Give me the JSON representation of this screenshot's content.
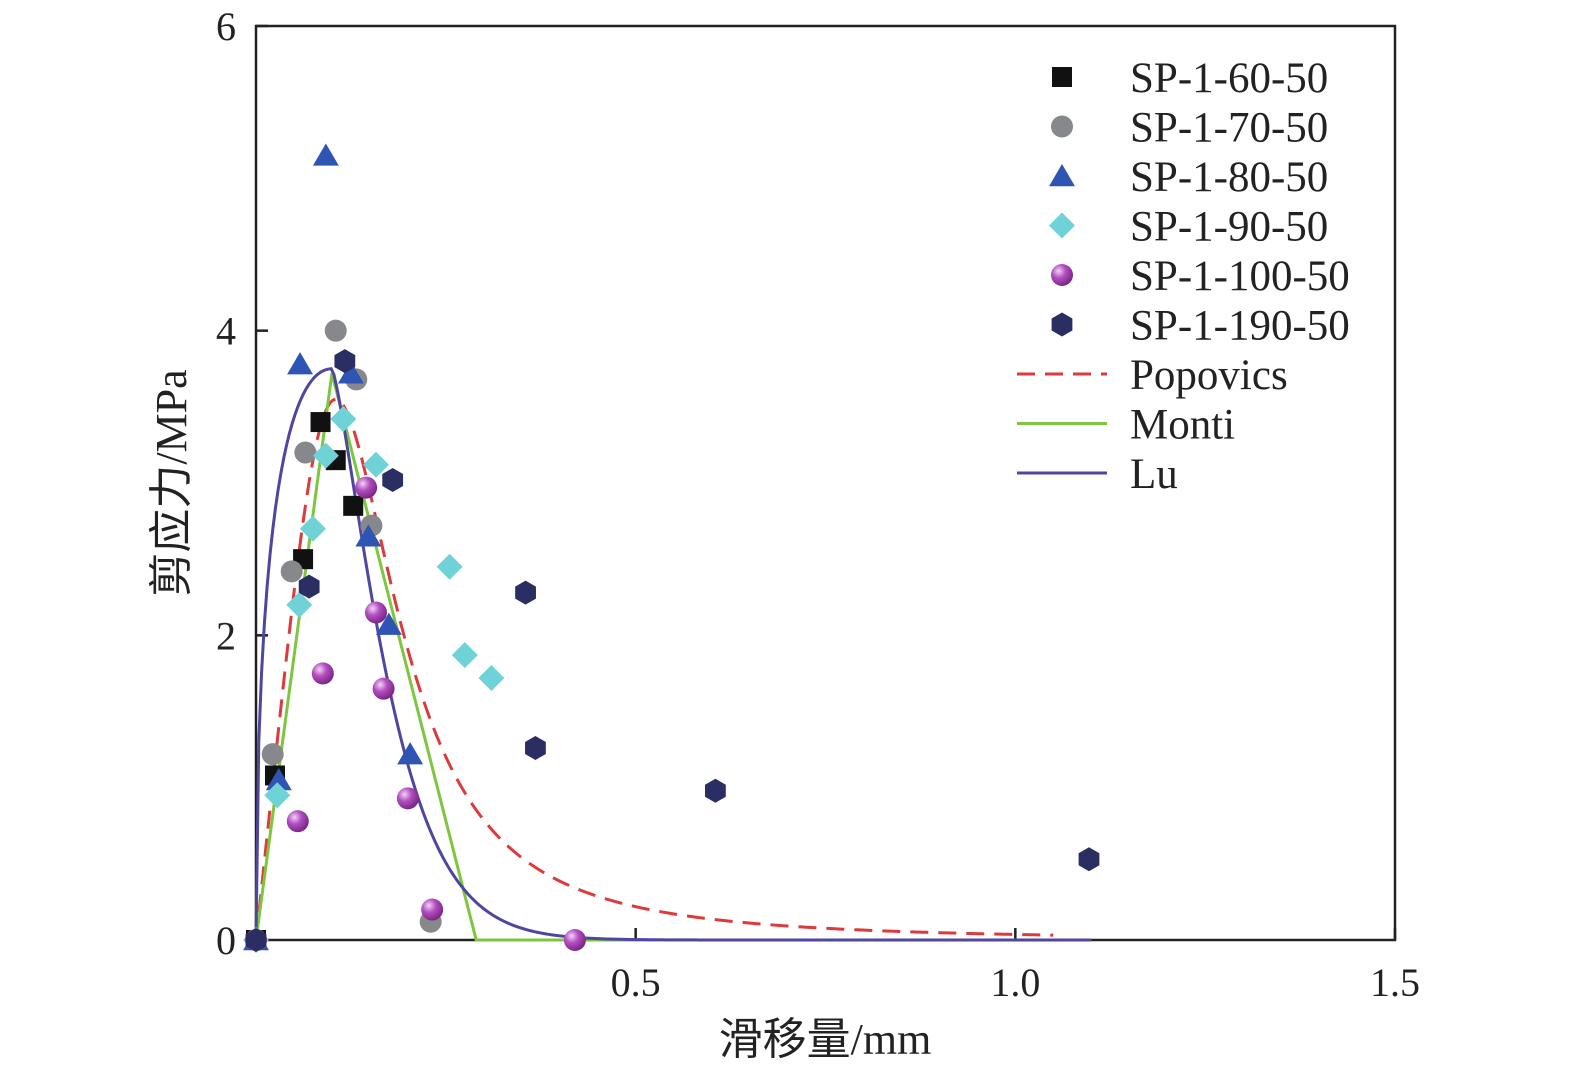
{
  "chart_data": {
    "type": "scatter",
    "xlabel": "滑移量/mm",
    "ylabel": "剪应力/MPa",
    "xlim": [
      0,
      1.5
    ],
    "ylim": [
      0,
      6
    ],
    "xticks": [
      {
        "value": 0.5,
        "label": "0.5"
      },
      {
        "value": 1.0,
        "label": "1.0"
      },
      {
        "value": 1.5,
        "label": "1.5"
      }
    ],
    "yticks": [
      {
        "value": 0,
        "label": "0"
      },
      {
        "value": 2,
        "label": "2"
      },
      {
        "value": 4,
        "label": "4"
      },
      {
        "value": 6,
        "label": "6"
      }
    ],
    "grid": false,
    "legend_position": "top-right",
    "series": [
      {
        "name": "SP-1-60-50",
        "kind": "scatter",
        "marker": "square",
        "color": "#111111",
        "points": [
          [
            0,
            0
          ],
          [
            0.025,
            1.08
          ],
          [
            0.062,
            2.5
          ],
          [
            0.085,
            3.4
          ],
          [
            0.105,
            3.15
          ],
          [
            0.128,
            2.85
          ]
        ]
      },
      {
        "name": "SP-1-70-50",
        "kind": "scatter",
        "marker": "circle",
        "color": "#86888c",
        "points": [
          [
            0,
            0
          ],
          [
            0.022,
            1.22
          ],
          [
            0.047,
            2.42
          ],
          [
            0.065,
            3.2
          ],
          [
            0.105,
            4.0
          ],
          [
            0.132,
            3.68
          ],
          [
            0.152,
            2.72
          ],
          [
            0.23,
            0.12
          ]
        ]
      },
      {
        "name": "SP-1-80-50",
        "kind": "scatter",
        "marker": "triangle",
        "color": "#2e55b3",
        "points": [
          [
            0,
            0
          ],
          [
            0.03,
            1.05
          ],
          [
            0.058,
            3.78
          ],
          [
            0.092,
            5.15
          ],
          [
            0.125,
            3.72
          ],
          [
            0.148,
            2.65
          ],
          [
            0.175,
            2.07
          ],
          [
            0.203,
            1.22
          ]
        ]
      },
      {
        "name": "SP-1-90-50",
        "kind": "scatter",
        "marker": "diamond",
        "color": "#6fd2d6",
        "points": [
          [
            0,
            0
          ],
          [
            0.028,
            0.95
          ],
          [
            0.057,
            2.2
          ],
          [
            0.075,
            2.7
          ],
          [
            0.092,
            3.18
          ],
          [
            0.115,
            3.42
          ],
          [
            0.158,
            3.12
          ],
          [
            0.255,
            2.45
          ],
          [
            0.275,
            1.87
          ],
          [
            0.31,
            1.72
          ]
        ]
      },
      {
        "name": "SP-1-100-50",
        "kind": "scatter",
        "marker": "sphere",
        "color": "#a43cb3",
        "points": [
          [
            0,
            0
          ],
          [
            0.055,
            0.78
          ],
          [
            0.088,
            1.75
          ],
          [
            0.145,
            2.97
          ],
          [
            0.158,
            2.15
          ],
          [
            0.168,
            1.65
          ],
          [
            0.2,
            0.93
          ],
          [
            0.232,
            0.2
          ],
          [
            0.42,
            0
          ]
        ]
      },
      {
        "name": "SP-1-190-50",
        "kind": "scatter",
        "marker": "hexagon",
        "color": "#2b2e63",
        "points": [
          [
            0,
            0
          ],
          [
            0.07,
            2.32
          ],
          [
            0.117,
            3.8
          ],
          [
            0.18,
            3.02
          ],
          [
            0.355,
            2.28
          ],
          [
            0.368,
            1.26
          ],
          [
            0.605,
            0.98
          ],
          [
            1.097,
            0.53
          ]
        ]
      },
      {
        "name": "Popovics",
        "kind": "line",
        "dash": true,
        "color": "#dd3b3b",
        "model": {
          "type": "popovics",
          "peak_x": 0.105,
          "peak_y": 3.55,
          "r": 3.6,
          "x_max": 1.05
        }
      },
      {
        "name": "Monti",
        "kind": "line",
        "dash": false,
        "color": "#7dc63e",
        "x": [
          0,
          0.1,
          0.29,
          1.1
        ],
        "values": [
          0,
          3.72,
          0,
          0
        ]
      },
      {
        "name": "Lu",
        "kind": "line",
        "dash": false,
        "color": "#4f46a0",
        "model": {
          "type": "lu",
          "peak_x": 0.1,
          "peak_y": 3.75,
          "b": 2.0,
          "decay": 0.15,
          "x_max": 1.1
        }
      }
    ]
  }
}
